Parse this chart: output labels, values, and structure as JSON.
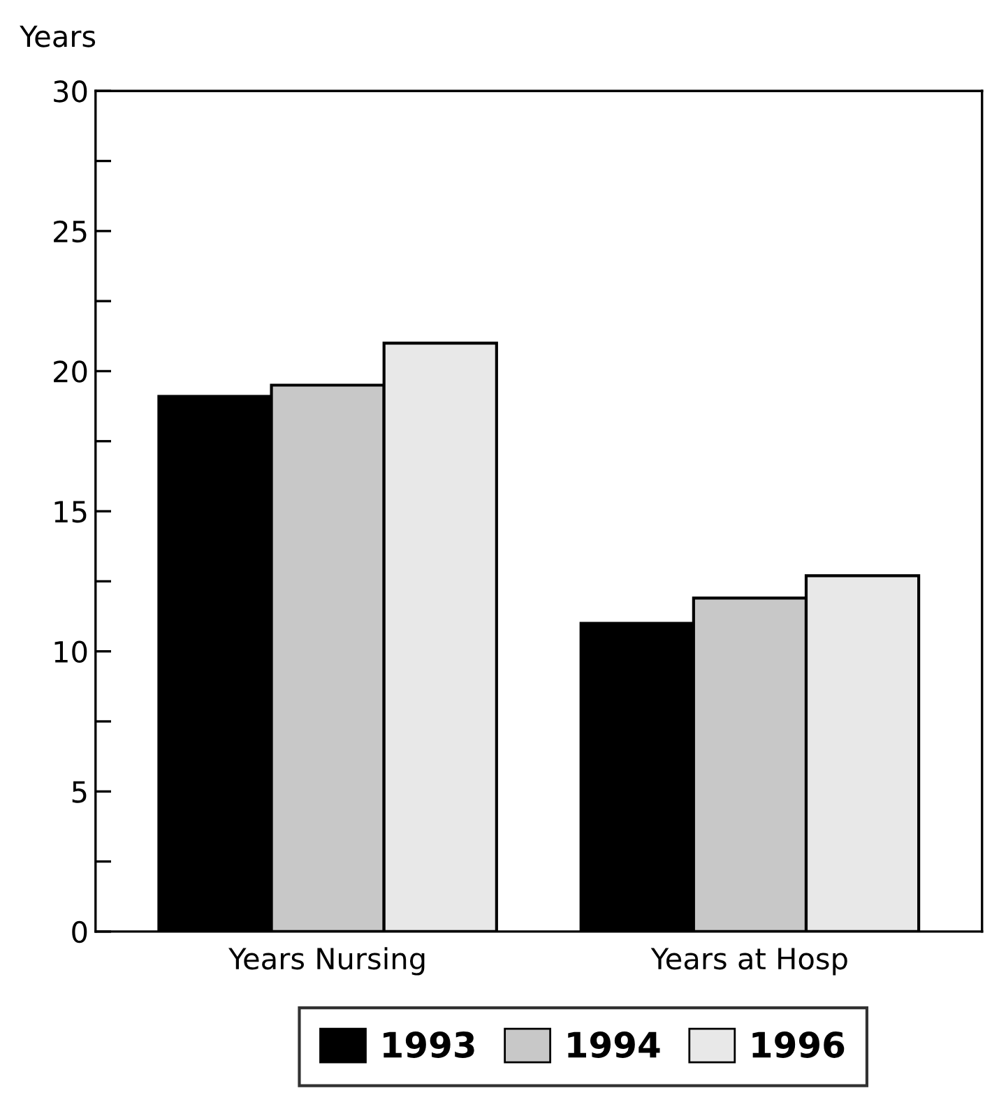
{
  "chart_data": {
    "type": "bar",
    "ylabel": "Years",
    "categories": [
      "Years Nursing",
      "Years at Hosp"
    ],
    "series": [
      {
        "name": "1993",
        "color": "#000000",
        "values": [
          19.1,
          11.0
        ]
      },
      {
        "name": "1994",
        "color": "#c8c8c8",
        "values": [
          19.5,
          11.9
        ]
      },
      {
        "name": "1996",
        "color": "#e8e8e8",
        "values": [
          21.0,
          12.7
        ]
      }
    ],
    "ylim": [
      0,
      30
    ],
    "yticks": [
      0,
      {
        "value": 2.5,
        "label": null
      },
      5,
      {
        "value": 7.5,
        "label": null
      },
      10,
      {
        "value": 12.5,
        "label": null
      },
      15,
      {
        "value": 17.5,
        "label": null
      },
      20,
      {
        "value": 22.5,
        "label": null
      },
      25,
      {
        "value": 27.5,
        "label": null
      },
      30
    ],
    "grid": false,
    "legend": "bottom"
  }
}
